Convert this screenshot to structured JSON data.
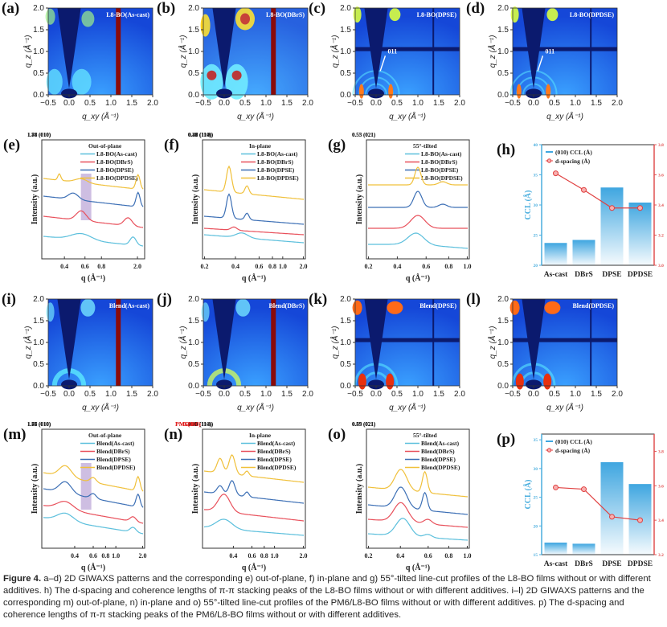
{
  "figure": {
    "caption_title": "Figure 4.",
    "caption_text": " a–d) 2D GIWAXS patterns and the corresponding e) out-of-plane, f) in-plane and g) 55°-tilted line-cut profiles of the L8-BO films without or with different additives. h) The d-spacing and coherence lengths of π-π stacking peaks of the L8-BO films without or with different additives. i–l) 2D GIWAXS patterns and the corresponding m) out-of-plane, n) in-plane and o) 55°-tilted line-cut profiles of the PM6/L8-BO films without or with different additives. p) The d-spacing and coherence lengths of π-π stacking peaks of the PM6/L8-BO films without or with different additives."
  },
  "colors": {
    "ascast": "#5bbfdc",
    "dbrs": "#e8505b",
    "dpse": "#3c6fb5",
    "dpdse": "#f0c03a",
    "bar": "#3fa6e0",
    "dspacing": "#e04040",
    "left_axis": "#4aaede",
    "right_axis": "#e05050"
  },
  "chart_data": [
    {
      "id": "a",
      "type": "heatmap",
      "label": "(a)",
      "title": "L8-BO(As-cast)",
      "xlabel": "q_xy (Å⁻¹)",
      "ylabel": "q_z (Å⁻¹)",
      "xlim": [
        -0.5,
        2.0
      ],
      "ylim": [
        0.0,
        2.0
      ],
      "xticks": [
        "-0.5",
        "0.0",
        "0.5",
        "1.0",
        "1.5",
        "2.0"
      ],
      "yticks": [
        "0.0",
        "0.5",
        "1.0",
        "1.5",
        "2.0"
      ],
      "style": "weak",
      "red_bar": true
    },
    {
      "id": "b",
      "type": "heatmap",
      "label": "(b)",
      "title": "L8-BO(DBrS)",
      "xlabel": "q_xy (Å⁻¹)",
      "ylabel": "q_z (Å⁻¹)",
      "xlim": [
        -0.5,
        2.0
      ],
      "ylim": [
        0.0,
        2.0
      ],
      "xticks": [
        "-0.5",
        "0.0",
        "0.5",
        "1.0",
        "1.5",
        "2.0"
      ],
      "yticks": [
        "0.0",
        "0.5",
        "1.0",
        "1.5",
        "2.0"
      ],
      "style": "strong",
      "red_bar": true
    },
    {
      "id": "c",
      "type": "heatmap",
      "label": "(c)",
      "title": "L8-BO(DPSE)",
      "xlabel": "q_xy (Å⁻¹)",
      "ylabel": "q_z (Å⁻¹)",
      "xlim": [
        -0.5,
        2.0
      ],
      "ylim": [
        0.0,
        2.0
      ],
      "xticks": [
        "-0.5",
        "0.0",
        "0.5",
        "1.0",
        "1.5",
        "2.0"
      ],
      "yticks": [
        "0.0",
        "0.5",
        "1.0",
        "1.5",
        "2.0"
      ],
      "style": "crystal",
      "red_bar": false,
      "annotation": "011"
    },
    {
      "id": "d",
      "type": "heatmap",
      "label": "(d)",
      "title": "L8-BO(DPDSE)",
      "xlabel": "q_xy (Å⁻¹)",
      "ylabel": "q_z (Å⁻¹)",
      "xlim": [
        -0.5,
        2.0
      ],
      "ylim": [
        0.0,
        2.0
      ],
      "xticks": [
        "-0.5",
        "0.0",
        "0.5",
        "1.0",
        "1.5",
        "2.0"
      ],
      "yticks": [
        "0.0",
        "0.5",
        "1.0",
        "1.5",
        "2.0"
      ],
      "style": "crystal",
      "red_bar": false,
      "annotation": "011"
    },
    {
      "id": "e",
      "type": "line",
      "label": "(e)",
      "title": "Out-of-plane",
      "xlabel": "q (Å⁻¹)",
      "ylabel": "Intensity (a.u.)",
      "xscale": "log",
      "xticks": [
        "0.4",
        "0.6",
        "0.8",
        "2.0"
      ],
      "legend": [
        "L8-BO(As-cast)",
        "L8-BO(DBrS)",
        "L8-BO(DPSE)",
        "L8-BO(DPDSE)"
      ],
      "annotations": [
        "1.86 (010)",
        "1.78 (010)",
        "1.74 (010)"
      ],
      "highlight_q": [
        0.52,
        0.62
      ]
    },
    {
      "id": "f",
      "type": "line",
      "label": "(f)",
      "title": "In-plane",
      "xlabel": "q (Å⁻¹)",
      "ylabel": "Intensity (a.u.)",
      "xscale": "log",
      "xticks": [
        "0.2",
        "0.4",
        "0.6",
        "0.8",
        "1.0",
        "2.0"
      ],
      "legend": [
        "L8-BO(As-cast)",
        "L8-BO(DBrS)",
        "L8-BO(DPSE)",
        "L8-BO(DPDSE)"
      ],
      "annotations": [
        "0.36 (110)",
        "0.48 (11-1)",
        "0.36 (110)",
        "0.48 (11-1)",
        "0.39 (110)",
        "0.47 (11-1)",
        "0.44 (11-1)"
      ]
    },
    {
      "id": "g",
      "type": "line",
      "label": "(g)",
      "title": "55°-tilted",
      "xlabel": "q (Å⁻¹)",
      "ylabel": "Intensity (a.u.)",
      "xscale": "log",
      "xticks": [
        "0.2",
        "0.4",
        "0.6",
        "0.8",
        "1.0"
      ],
      "legend": [
        "L8-BO(As-cast)",
        "L8-BO(DBrS)",
        "L8-BO(DPSE)",
        "L8-BO(DPDSE)"
      ],
      "annotations": [
        "0.55 (021)",
        "0.53 (021)"
      ]
    },
    {
      "id": "h",
      "type": "bar",
      "label": "(h)",
      "categories": [
        "As-cast",
        "DBrS",
        "DPSE",
        "DPDSE"
      ],
      "series": [
        {
          "name": "(010) CCL (Å)",
          "axis": "left",
          "kind": "bar",
          "values": [
            23.7,
            24.2,
            32.9,
            30.4
          ]
        },
        {
          "name": "d-spacing (Å)",
          "axis": "right",
          "kind": "line",
          "values": [
            3.61,
            3.5,
            3.38,
            3.38
          ]
        }
      ],
      "ylabel": "CCL (Å)",
      "ylim": [
        20,
        40
      ],
      "yticks": [
        "20",
        "25",
        "30",
        "35",
        "40"
      ],
      "y2label": "d-spacing (Å)",
      "y2lim": [
        3.0,
        3.8
      ],
      "y2ticks": [
        "3.0",
        "3.2",
        "3.4",
        "3.6",
        "3.8"
      ]
    },
    {
      "id": "i",
      "type": "heatmap",
      "label": "(i)",
      "title": "Blend(As-cast)",
      "xlabel": "q_xy (Å⁻¹)",
      "ylabel": "q_z (Å⁻¹)",
      "xlim": [
        -0.5,
        2.0
      ],
      "ylim": [
        0.0,
        2.0
      ],
      "xticks": [
        "-0.5",
        "0.0",
        "0.5",
        "1.0",
        "1.5",
        "2.0"
      ],
      "yticks": [
        "0.0",
        "0.5",
        "1.0",
        "1.5",
        "2.0"
      ],
      "style": "blend",
      "red_bar": true
    },
    {
      "id": "j",
      "type": "heatmap",
      "label": "(j)",
      "title": "Blend(DBrS)",
      "xlabel": "q_xy (Å⁻¹)",
      "ylabel": "q_z (Å⁻¹)",
      "xlim": [
        -0.5,
        2.0
      ],
      "ylim": [
        0.0,
        2.0
      ],
      "xticks": [
        "-0.5",
        "0.0",
        "0.5",
        "1.0",
        "1.5",
        "2.0"
      ],
      "yticks": [
        "0.0",
        "0.5",
        "1.0",
        "1.5",
        "2.0"
      ],
      "style": "blend2",
      "red_bar": true
    },
    {
      "id": "k",
      "type": "heatmap",
      "label": "(k)",
      "title": "Blend(DPSE)",
      "xlabel": "q_xy (Å⁻¹)",
      "ylabel": "q_z (Å⁻¹)",
      "xlim": [
        -0.5,
        2.0
      ],
      "ylim": [
        0.0,
        2.0
      ],
      "xticks": [
        "-0.5",
        "0.0",
        "0.5",
        "1.0",
        "1.5",
        "2.0"
      ],
      "yticks": [
        "0.0",
        "0.5",
        "1.0",
        "1.5",
        "2.0"
      ],
      "style": "blendcrystal",
      "red_bar": false
    },
    {
      "id": "l",
      "type": "heatmap",
      "label": "(l)",
      "title": "Blend(DPDSE)",
      "xlabel": "q_xy (Å⁻¹)",
      "ylabel": "q_z (Å⁻¹)",
      "xlim": [
        -0.5,
        2.0
      ],
      "ylim": [
        0.0,
        2.0
      ],
      "xticks": [
        "-0.5",
        "0.0",
        "0.5",
        "1.0",
        "1.5",
        "2.0"
      ],
      "yticks": [
        "0.0",
        "0.5",
        "1.0",
        "1.5",
        "2.0"
      ],
      "style": "blendcrystal",
      "red_bar": false
    },
    {
      "id": "m",
      "type": "line",
      "label": "(m)",
      "title": "Out-of-plane",
      "xlabel": "q (Å⁻¹)",
      "ylabel": "Intensity (a.u.)",
      "xscale": "log",
      "xticks": [
        "0.4",
        "0.6",
        "0.8",
        "1.0",
        "2.0"
      ],
      "legend": [
        "Blend(As-cast)",
        "Blend(DBrS)",
        "Blend(DPSE)",
        "Blend(DPDSE)"
      ],
      "annotations": [
        "1.85 (010)",
        "1.84 (010)",
        "1.76 (010)",
        "1.75 (010)"
      ],
      "highlight_q": [
        0.5,
        0.65
      ]
    },
    {
      "id": "n",
      "type": "line",
      "label": "(n)",
      "title": "In-plane",
      "xlabel": "q (Å⁻¹)",
      "ylabel": "Intensity (a.u.)",
      "xscale": "log",
      "xticks": [
        "0.4",
        "0.6",
        "0.8",
        "1.0",
        "2.0"
      ],
      "legend": [
        "Blend(As-cast)",
        "Blend(DBrS)",
        "Blend(DPSE)",
        "Blend(DPDSE)"
      ],
      "annotations": [
        "0.36 (110)",
        "0.47 (11-1)",
        "0.46 (11-1)",
        "0.43 (11-1)",
        "0.42 (11-1)"
      ],
      "red_annotations": [
        "0.30",
        "PM6(100)",
        "0.31",
        "PM6(100)"
      ]
    },
    {
      "id": "o",
      "type": "line",
      "label": "(o)",
      "title": "55°-tilted",
      "xlabel": "q (Å⁻¹)",
      "ylabel": "Intensity (a.u.)",
      "xscale": "log",
      "xticks": [
        "0.2",
        "0.4",
        "0.6",
        "0.8",
        "1.0"
      ],
      "legend": [
        "Blend(As-cast)",
        "Blend(DBrS)",
        "Blend(DPSE)",
        "Blend(DPDSE)"
      ],
      "annotations": [
        "0.53 (021)",
        "0.55 (021)",
        "0.49 (021)"
      ]
    },
    {
      "id": "p",
      "type": "bar",
      "label": "(p)",
      "categories": [
        "As-cast",
        "DBrS",
        "DPSE",
        "DPDSE"
      ],
      "series": [
        {
          "name": "(010) CCL (Å)",
          "axis": "left",
          "kind": "bar",
          "values": [
            17.1,
            16.9,
            31.1,
            27.3
          ]
        },
        {
          "name": "d-spacing (Å)",
          "axis": "right",
          "kind": "line",
          "values": [
            3.59,
            3.58,
            3.42,
            3.4
          ]
        }
      ],
      "ylabel": "CCL (Å)",
      "ylim": [
        15,
        36
      ],
      "yticks": [
        "15",
        "20",
        "25",
        "30",
        "35"
      ],
      "y2label": "d-spacing (Å)",
      "y2lim": [
        3.2,
        3.9
      ],
      "y2ticks": [
        "3.2",
        "3.4",
        "3.6",
        "3.8"
      ]
    }
  ]
}
